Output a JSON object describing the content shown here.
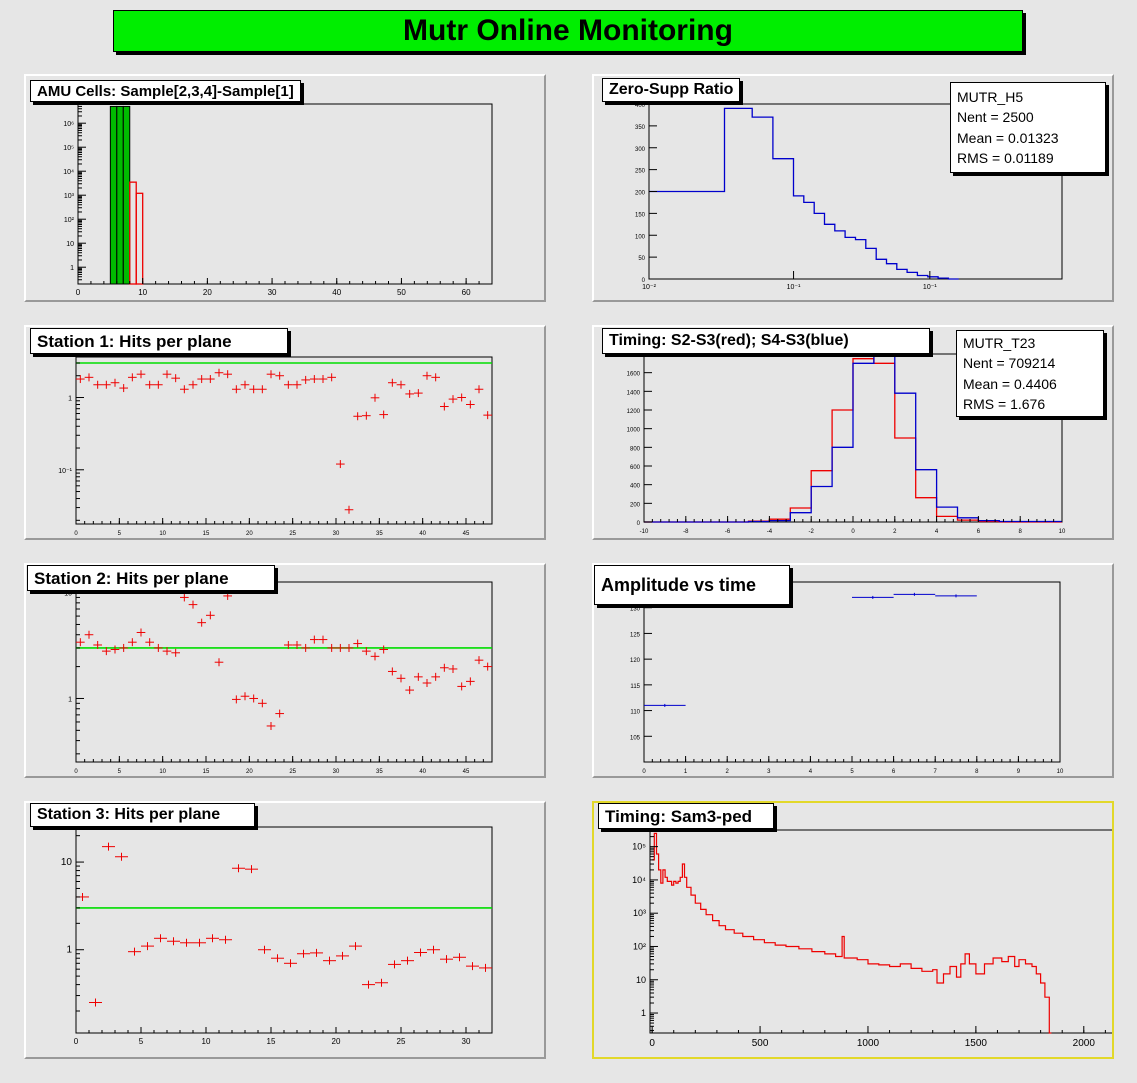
{
  "header": {
    "title": "Mutr Online Monitoring"
  },
  "colors": {
    "green": "#00ee00",
    "red": "#ee0000",
    "blue": "#0000cc",
    "pad": "#e6e6e6",
    "frame": "#ffffff",
    "sel": "#e2d82a"
  },
  "chart_data": [
    {
      "id": "amu",
      "type": "bar",
      "title": "AMU Cells: Sample[2,3,4]-Sample[1]",
      "log_y": true,
      "xlim": [
        0,
        64
      ],
      "ylim_log": [
        -0.7,
        6.8
      ],
      "x_ticks": [
        "0",
        "10",
        "20",
        "30",
        "40",
        "50",
        "60"
      ],
      "y_tick_labels": [
        "1",
        "10",
        "10²",
        "10³",
        "10⁴",
        "10⁵",
        "10⁶"
      ],
      "series": [
        {
          "name": "",
          "color": "#00bb00",
          "bins": [
            [
              5,
              6,
              5000000
            ],
            [
              6,
              7,
              5000000
            ],
            [
              7,
              8,
              5000000
            ]
          ]
        },
        {
          "name": "",
          "color": "#ee0000",
          "bins": [
            [
              8,
              9,
              3500
            ],
            [
              9,
              10,
              1200
            ]
          ]
        }
      ]
    },
    {
      "id": "zero_supp",
      "type": "line",
      "title": "Zero-Supp Ratio",
      "log_x": true,
      "xlim_log": [
        -2,
        0
      ],
      "ylim": [
        0,
        400
      ],
      "x_tick_labels": [
        "10⁻²",
        "10⁻¹",
        "10⁻¹"
      ],
      "y_ticks": [
        "0",
        "50",
        "100",
        "150",
        "200",
        "250",
        "300",
        "350",
        "400"
      ],
      "stats": {
        "name": "MUTR_H5",
        "entries": "Nent = 2500",
        "mean": "Mean  = 0.01323",
        "rms": "RMS   = 0.01189"
      },
      "series": [
        {
          "name": "",
          "color": "#0000cc",
          "bins": [
            [
              0.01,
              0.0232,
              200
            ],
            [
              0.0232,
              0.0316,
              390
            ],
            [
              0.0316,
              0.0398,
              370
            ],
            [
              0.0398,
              0.0501,
              275
            ],
            [
              0.0501,
              0.0562,
              190
            ],
            [
              0.0562,
              0.0631,
              175
            ],
            [
              0.0631,
              0.0708,
              150
            ],
            [
              0.0708,
              0.0794,
              125
            ],
            [
              0.0794,
              0.0891,
              110
            ],
            [
              0.0891,
              0.1,
              95
            ],
            [
              0.1,
              0.1122,
              90
            ],
            [
              0.1122,
              0.1259,
              70
            ],
            [
              0.1259,
              0.1413,
              45
            ],
            [
              0.1413,
              0.1585,
              35
            ],
            [
              0.1585,
              0.1778,
              22
            ],
            [
              0.1778,
              0.1995,
              15
            ],
            [
              0.1995,
              0.2239,
              8
            ],
            [
              0.2239,
              0.2512,
              5
            ],
            [
              0.2512,
              0.2818,
              2
            ],
            [
              0.2818,
              0.3162,
              0
            ]
          ]
        }
      ]
    },
    {
      "id": "st1",
      "type": "scatter",
      "title": "Station 1: Hits per plane",
      "log_y": true,
      "xlim": [
        0,
        48
      ],
      "ylim_log": [
        -1.75,
        0.56
      ],
      "x_ticks": [
        "0",
        "5",
        "10",
        "15",
        "20",
        "25",
        "30",
        "35",
        "40",
        "45"
      ],
      "y_tick_labels": [
        "10⁻¹",
        "1"
      ],
      "ref_line": 3.0,
      "points": [
        1.8,
        1.9,
        1.5,
        1.5,
        1.6,
        1.35,
        1.9,
        2.1,
        1.5,
        1.5,
        2.1,
        1.85,
        1.3,
        1.5,
        1.8,
        1.8,
        2.2,
        2.1,
        1.3,
        1.5,
        1.3,
        1.3,
        2.1,
        2.0,
        1.5,
        1.5,
        1.75,
        1.8,
        1.8,
        1.9,
        0.12,
        0.028,
        0.55,
        0.56,
        0.99,
        0.58,
        1.6,
        1.5,
        1.12,
        1.15,
        2.0,
        1.9,
        0.75,
        0.95,
        1.0,
        0.8,
        1.3,
        0.57
      ]
    },
    {
      "id": "timing1",
      "type": "line",
      "title": "Timing: S2-S3(red); S4-S3(blue)",
      "xlim": [
        -10,
        10
      ],
      "ylim": [
        0,
        1800
      ],
      "x_ticks": [
        "-10",
        "-8",
        "-6",
        "-4",
        "-2",
        "0",
        "2",
        "4",
        "6",
        "8",
        "10"
      ],
      "y_ticks": [
        "0",
        "200",
        "400",
        "600",
        "800",
        "1000",
        "1200",
        "1400",
        "1600"
      ],
      "stats": {
        "name": "MUTR_T23",
        "entries": "Nent = 709214",
        "mean": "Mean  = 0.4406",
        "rms": "RMS   = 1.676"
      },
      "series": [
        {
          "name": "red",
          "color": "#ee0000",
          "bins": [
            [
              -10,
              -5,
              0
            ],
            [
              -5,
              -4,
              10
            ],
            [
              -4,
              -3,
              30
            ],
            [
              -3,
              -2,
              150
            ],
            [
              -2,
              -1,
              550
            ],
            [
              -1,
              0,
              1200
            ],
            [
              0,
              1,
              1750
            ],
            [
              1,
              2,
              1700
            ],
            [
              2,
              3,
              900
            ],
            [
              3,
              4,
              260
            ],
            [
              4,
              5,
              60
            ],
            [
              5,
              6,
              20
            ],
            [
              6,
              7,
              5
            ],
            [
              7,
              10,
              0
            ]
          ]
        },
        {
          "name": "blue",
          "color": "#0000cc",
          "bins": [
            [
              -10,
              -5,
              0
            ],
            [
              -5,
              -4,
              5
            ],
            [
              -4,
              -3,
              15
            ],
            [
              -3,
              -2,
              100
            ],
            [
              -2,
              -1,
              380
            ],
            [
              -1,
              0,
              800
            ],
            [
              0,
              1,
              1700
            ],
            [
              1,
              2,
              1780
            ],
            [
              2,
              3,
              1380
            ],
            [
              3,
              4,
              560
            ],
            [
              4,
              5,
              160
            ],
            [
              5,
              6,
              45
            ],
            [
              6,
              7,
              15
            ],
            [
              7,
              10,
              5
            ]
          ]
        }
      ]
    },
    {
      "id": "st2",
      "type": "scatter",
      "title": "Station 2: Hits per plane",
      "log_y": true,
      "xlim": [
        0,
        48
      ],
      "ylim_log": [
        -0.6,
        1.1
      ],
      "x_ticks": [
        "0",
        "5",
        "10",
        "15",
        "20",
        "25",
        "30",
        "35",
        "40",
        "45"
      ],
      "y_tick_labels": [
        "1",
        "10"
      ],
      "ref_line": 3.0,
      "points": [
        3.4,
        4.0,
        3.2,
        2.8,
        2.9,
        3.0,
        3.4,
        4.2,
        3.4,
        3.0,
        2.8,
        2.7,
        9.0,
        7.7,
        5.2,
        6.1,
        2.2,
        9.3,
        0.98,
        1.05,
        1.0,
        0.9,
        0.55,
        0.72,
        3.2,
        3.2,
        3.0,
        3.6,
        3.6,
        3.0,
        3.0,
        3.0,
        3.3,
        2.8,
        2.5,
        2.9,
        1.8,
        1.55,
        1.2,
        1.6,
        1.4,
        1.6,
        1.95,
        1.9,
        1.3,
        1.45,
        2.3,
        2.0
      ]
    },
    {
      "id": "amp",
      "type": "scatter",
      "title": "Amplitude vs time",
      "xlim": [
        0,
        10
      ],
      "ylim": [
        100,
        135
      ],
      "x_ticks": [
        "0",
        "1",
        "2",
        "3",
        "4",
        "5",
        "6",
        "7",
        "8",
        "9",
        "10"
      ],
      "y_ticks": [
        "105",
        "110",
        "115",
        "120",
        "125",
        "130"
      ],
      "series": [
        {
          "name": "",
          "color": "#0000cc",
          "points": [
            [
              0.5,
              111
            ],
            [
              5.5,
              132
            ],
            [
              6.5,
              132.6
            ],
            [
              7.5,
              132.3
            ]
          ]
        }
      ]
    },
    {
      "id": "st3",
      "type": "scatter",
      "title": "Station 3: Hits per plane",
      "log_y": true,
      "xlim": [
        0,
        32
      ],
      "ylim_log": [
        -0.95,
        1.4
      ],
      "x_ticks": [
        "0",
        "5",
        "10",
        "15",
        "20",
        "25",
        "30"
      ],
      "y_tick_labels": [
        "1",
        "10"
      ],
      "ref_line": 3.0,
      "points": [
        4.0,
        0.25,
        15.0,
        11.5,
        0.95,
        1.1,
        1.35,
        1.25,
        1.2,
        1.2,
        1.35,
        1.3,
        8.5,
        8.3,
        1.0,
        0.8,
        0.7,
        0.9,
        0.92,
        0.75,
        0.85,
        1.1,
        0.4,
        0.42,
        0.68,
        0.75,
        0.93,
        1.0,
        0.78,
        0.82,
        0.65,
        0.62
      ]
    },
    {
      "id": "timing2",
      "type": "line",
      "title": "Timing: Sam3-ped",
      "log_y": true,
      "xlim": [
        -10,
        2140
      ],
      "ylim_log": [
        -0.6,
        5.5
      ],
      "x_ticks": [
        "0",
        "500",
        "1000",
        "1500",
        "2000"
      ],
      "y_tick_labels": [
        "1",
        "10",
        "10²",
        "10³",
        "10⁴",
        "10⁵"
      ],
      "series": [
        {
          "name": "",
          "color": "#ee0000",
          "steps": [
            [
              0,
              40000
            ],
            [
              10,
              250000
            ],
            [
              20,
              60000
            ],
            [
              30,
              20000
            ],
            [
              40,
              8000
            ],
            [
              50,
              20000
            ],
            [
              60,
              12000
            ],
            [
              70,
              9000
            ],
            [
              80,
              9000
            ],
            [
              90,
              7000
            ],
            [
              100,
              9000
            ],
            [
              110,
              8000
            ],
            [
              120,
              9000
            ],
            [
              130,
              12000
            ],
            [
              140,
              30000
            ],
            [
              150,
              12000
            ],
            [
              160,
              6000
            ],
            [
              180,
              3500
            ],
            [
              200,
              2000
            ],
            [
              225,
              1300
            ],
            [
              250,
              900
            ],
            [
              280,
              600
            ],
            [
              310,
              420
            ],
            [
              340,
              320
            ],
            [
              380,
              250
            ],
            [
              420,
              200
            ],
            [
              470,
              160
            ],
            [
              520,
              130
            ],
            [
              570,
              110
            ],
            [
              620,
              100
            ],
            [
              680,
              85
            ],
            [
              740,
              70
            ],
            [
              800,
              60
            ],
            [
              850,
              50
            ],
            [
              880,
              200
            ],
            [
              890,
              45
            ],
            [
              950,
              40
            ],
            [
              1000,
              30
            ],
            [
              1050,
              28
            ],
            [
              1100,
              25
            ],
            [
              1150,
              30
            ],
            [
              1200,
              22
            ],
            [
              1250,
              18
            ],
            [
              1300,
              20
            ],
            [
              1320,
              8
            ],
            [
              1350,
              15
            ],
            [
              1380,
              25
            ],
            [
              1410,
              12
            ],
            [
              1430,
              30
            ],
            [
              1450,
              60
            ],
            [
              1470,
              30
            ],
            [
              1500,
              15
            ],
            [
              1540,
              30
            ],
            [
              1580,
              45
            ],
            [
              1620,
              35
            ],
            [
              1650,
              50
            ],
            [
              1680,
              25
            ],
            [
              1700,
              40
            ],
            [
              1730,
              30
            ],
            [
              1760,
              25
            ],
            [
              1780,
              15
            ],
            [
              1800,
              8
            ],
            [
              1820,
              3
            ],
            [
              1840,
              0.05
            ]
          ]
        }
      ]
    }
  ]
}
